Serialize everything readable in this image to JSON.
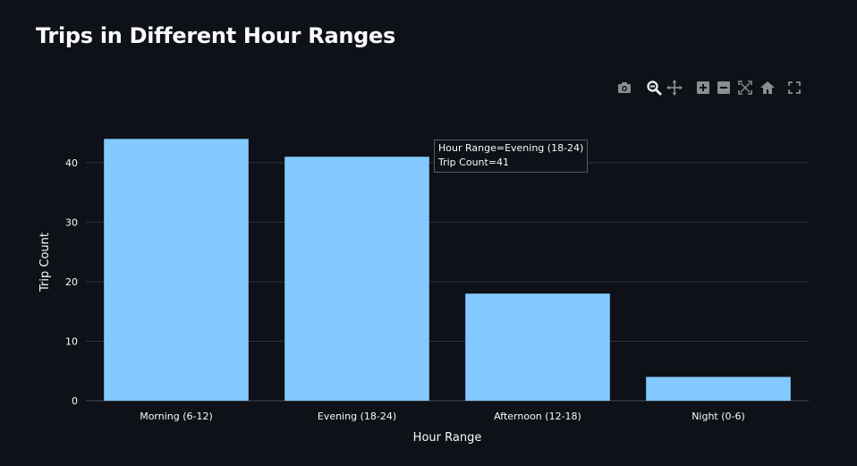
{
  "page": {
    "title": "Trips in Different Hour Ranges"
  },
  "modebar": {
    "buttons": [
      {
        "name": "camera-icon"
      },
      {
        "name": "zoom-icon"
      },
      {
        "name": "pan-icon"
      },
      {
        "name": "zoom-in-icon"
      },
      {
        "name": "zoom-out-icon"
      },
      {
        "name": "autoscale-icon"
      },
      {
        "name": "reset-axes-icon"
      },
      {
        "name": "fullscreen-icon"
      }
    ]
  },
  "colors": {
    "background": "#0e1117",
    "bar": "#83c9ff",
    "grid": "#31333f",
    "text": "#fafafa",
    "icon": "#8b8d93",
    "icon_active": "#e6e6e6"
  },
  "chart_data": {
    "type": "bar",
    "categories": [
      "Morning (6-12)",
      "Evening (18-24)",
      "Afternoon (12-18)",
      "Night (0-6)"
    ],
    "values": [
      44,
      41,
      18,
      4
    ],
    "title": "Trips in Different Hour Ranges",
    "xlabel": "Hour Range",
    "ylabel": "Trip Count",
    "ylim": [
      0,
      46.3
    ],
    "yticks": [
      0,
      10,
      20,
      30,
      40
    ],
    "grid": true,
    "legend": "none"
  },
  "tooltip": {
    "line1": "Hour Range=Evening (18-24)",
    "line2": "Trip Count=41"
  }
}
